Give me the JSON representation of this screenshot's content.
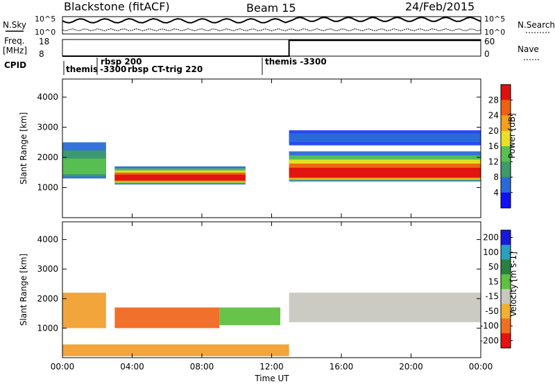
{
  "header": {
    "station": "Blackstone (fitACF)",
    "beam": "Beam 15",
    "date": "24/Feb/2015"
  },
  "strips": {
    "nsky_label": "N.Sky",
    "nsearch_label": "N.Search",
    "nsky_ticks": [
      "10^5",
      "10^0"
    ],
    "nsearch_ticks": [
      "10^5",
      "10^0"
    ],
    "freq_label": "Freq.",
    "freq_unit": "[MHz]",
    "freq_ticks": [
      "18",
      "8"
    ],
    "nave_label": "Nave",
    "nave_ticks": [
      "60",
      "0"
    ],
    "cpid_label": "CPID",
    "cpid_events": [
      "themis",
      "rbsp 200",
      "-3300",
      "rbsp CT-trig 220",
      "themis -3300"
    ],
    "freq_steps": [
      {
        "from": "00:00",
        "to": "13:00",
        "value": 8
      },
      {
        "from": "13:00",
        "to": "24:00",
        "value": 18
      }
    ]
  },
  "chart_data": [
    {
      "type": "heatmap",
      "name": "power-panel",
      "ylabel": "Slant Range [km]",
      "y_ticks": [
        "1000",
        "2000",
        "3000",
        "4000"
      ],
      "ylim": [
        0,
        4600
      ],
      "colorbar_label": "Power [dB]",
      "colorbar_ticks": [
        "4",
        "8",
        "12",
        "16",
        "20",
        "24",
        "28"
      ],
      "colorbar_colors": [
        "#1010ff",
        "#2a6ad8",
        "#3d9a6a",
        "#58c050",
        "#e8e020",
        "#f4a018",
        "#f06010",
        "#e01010"
      ],
      "bands": [
        {
          "start": "00:00",
          "end": "02:30",
          "lower_km": 1300,
          "upper_km": 2500,
          "core_km": 1550,
          "level": "medium"
        },
        {
          "start": "03:00",
          "end": "10:30",
          "lower_km": 1100,
          "upper_km": 1700,
          "core_km": 1300,
          "level": "strong"
        },
        {
          "start": "13:00",
          "end": "24:00",
          "lower_km": 1200,
          "upper_km": 2200,
          "core_km": 1400,
          "level": "strong"
        },
        {
          "start": "13:00",
          "end": "24:00",
          "lower_km": 2400,
          "upper_km": 2900,
          "core_km": 2650,
          "level": "weak"
        }
      ]
    },
    {
      "type": "heatmap",
      "name": "velocity-panel",
      "ylabel": "Slant Range [km]",
      "y_ticks": [
        "1000",
        "2000",
        "3000",
        "4000"
      ],
      "ylim": [
        0,
        4600
      ],
      "colorbar_label": "Velocity [m s-1]",
      "colorbar_ticks": [
        "200",
        "100",
        "50",
        "15",
        "-15",
        "-50",
        "-100",
        "-200"
      ],
      "colorbar_colors": [
        "#1818e0",
        "#2aa0c0",
        "#2a8040",
        "#60c040",
        "#c8c8c0",
        "#f0b030",
        "#f07020",
        "#e81010"
      ],
      "bands": [
        {
          "start": "00:00",
          "end": "02:30",
          "lower_km": 1000,
          "upper_km": 2200,
          "color": "orange"
        },
        {
          "start": "03:00",
          "end": "09:00",
          "lower_km": 1000,
          "upper_km": 1700,
          "color": "red-orange"
        },
        {
          "start": "09:00",
          "end": "12:30",
          "lower_km": 1100,
          "upper_km": 1700,
          "color": "green"
        },
        {
          "start": "13:00",
          "end": "24:00",
          "lower_km": 1200,
          "upper_km": 2200,
          "color": "gray"
        },
        {
          "start": "00:00",
          "end": "13:00",
          "lower_km": 50,
          "upper_km": 450,
          "color": "orange"
        }
      ]
    }
  ],
  "xaxis": {
    "label": "Time UT",
    "ticks": [
      "00:00",
      "04:00",
      "08:00",
      "12:00",
      "16:00",
      "20:00",
      "00:00"
    ]
  }
}
